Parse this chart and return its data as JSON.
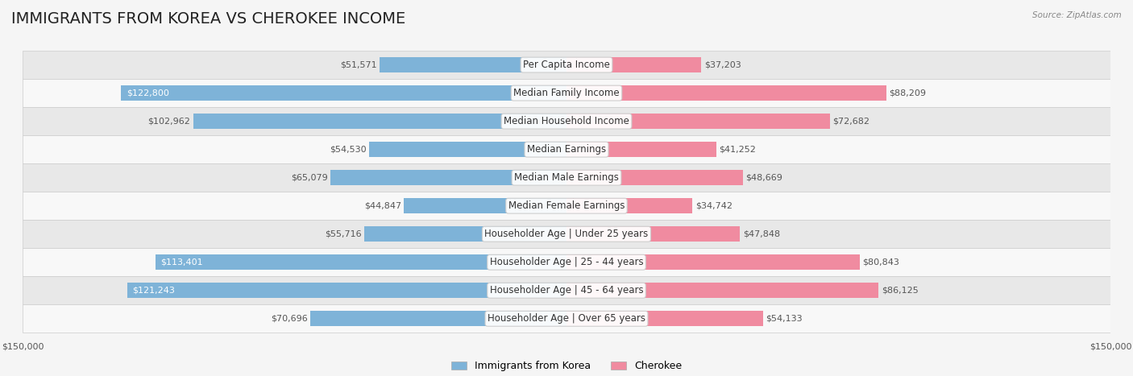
{
  "title": "IMMIGRANTS FROM KOREA VS CHEROKEE INCOME",
  "source": "Source: ZipAtlas.com",
  "categories": [
    "Per Capita Income",
    "Median Family Income",
    "Median Household Income",
    "Median Earnings",
    "Median Male Earnings",
    "Median Female Earnings",
    "Householder Age | Under 25 years",
    "Householder Age | 25 - 44 years",
    "Householder Age | 45 - 64 years",
    "Householder Age | Over 65 years"
  ],
  "korea_values": [
    51571,
    122800,
    102962,
    54530,
    65079,
    44847,
    55716,
    113401,
    121243,
    70696
  ],
  "cherokee_values": [
    37203,
    88209,
    72682,
    41252,
    48669,
    34742,
    47848,
    80843,
    86125,
    54133
  ],
  "korea_color": "#7eb3d8",
  "cherokee_color": "#f08ba0",
  "korea_label_color": "#5a8db5",
  "cherokee_label_color": "#e0607a",
  "max_value": 150000,
  "background_color": "#f5f5f5",
  "row_bg_color": "#ffffff",
  "row_alt_bg_color": "#f0f0f0",
  "title_fontsize": 14,
  "label_fontsize": 8.5,
  "value_fontsize": 8,
  "legend_fontsize": 9,
  "bar_height": 0.55
}
